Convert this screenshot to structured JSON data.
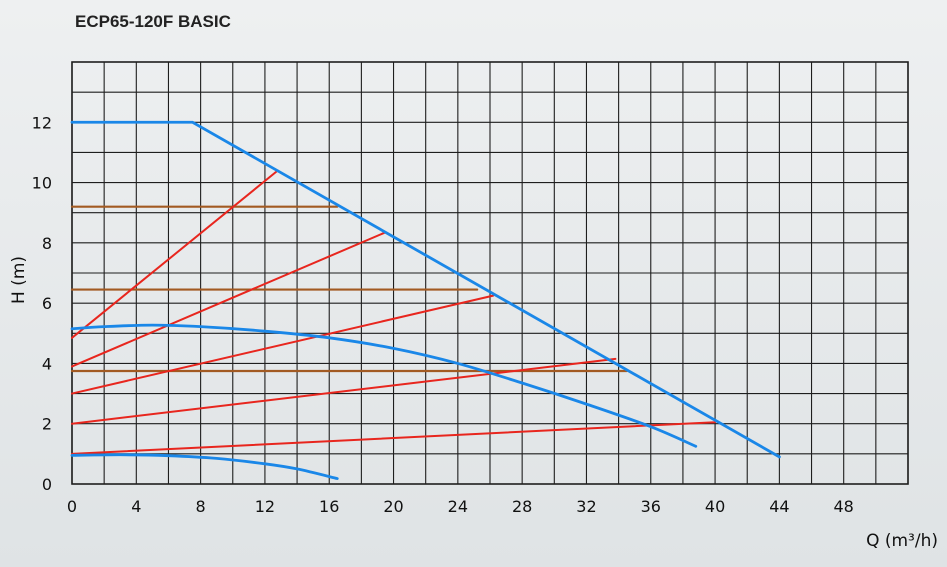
{
  "title": "ECP65-120F BASIC",
  "colors": {
    "pump_curve": "#1a87e8",
    "system_curve": "#e8261e",
    "setpoint": "#a25a22",
    "grid": "#1e1e1e"
  },
  "chart_data": {
    "type": "line",
    "xlabel": "Q (m³/h)",
    "ylabel": "H (m)",
    "xlim": [
      0,
      52
    ],
    "ylim": [
      0,
      14
    ],
    "xticks": [
      0,
      4,
      8,
      12,
      16,
      20,
      24,
      28,
      32,
      36,
      40,
      44,
      48
    ],
    "yticks": [
      0,
      2,
      4,
      6,
      8,
      10,
      12
    ],
    "grid": true,
    "series": [
      {
        "kind": "pump",
        "points": [
          [
            0,
            12
          ],
          [
            7.5,
            12
          ],
          [
            44,
            0.9
          ]
        ]
      },
      {
        "kind": "pump",
        "points": [
          [
            0,
            5.15
          ],
          [
            2,
            5.22
          ],
          [
            5,
            5.27
          ],
          [
            8,
            5.22
          ],
          [
            12,
            5.07
          ],
          [
            16,
            4.85
          ],
          [
            20,
            4.5
          ],
          [
            24,
            4.0
          ],
          [
            28,
            3.35
          ],
          [
            32,
            2.65
          ],
          [
            36,
            1.9
          ],
          [
            38.8,
            1.25
          ]
        ]
      },
      {
        "kind": "pump",
        "points": [
          [
            0,
            0.95
          ],
          [
            3,
            0.97
          ],
          [
            6,
            0.94
          ],
          [
            9,
            0.85
          ],
          [
            12,
            0.67
          ],
          [
            14,
            0.5
          ],
          [
            16.5,
            0.18
          ]
        ]
      },
      {
        "kind": "system",
        "points": [
          [
            0,
            4.85
          ],
          [
            12.8,
            10.4
          ]
        ]
      },
      {
        "kind": "system",
        "points": [
          [
            0,
            3.9
          ],
          [
            19.5,
            8.35
          ]
        ]
      },
      {
        "kind": "system",
        "points": [
          [
            0,
            3.0
          ],
          [
            26.2,
            6.25
          ]
        ]
      },
      {
        "kind": "system",
        "points": [
          [
            0,
            2.0
          ],
          [
            33.8,
            4.15
          ]
        ]
      },
      {
        "kind": "system",
        "points": [
          [
            0,
            1.0
          ],
          [
            40,
            2.05
          ]
        ]
      },
      {
        "kind": "setpoint",
        "points": [
          [
            0,
            9.2
          ],
          [
            16.5,
            9.2
          ]
        ]
      },
      {
        "kind": "setpoint",
        "points": [
          [
            0,
            6.45
          ],
          [
            25.2,
            6.45
          ]
        ]
      },
      {
        "kind": "setpoint",
        "points": [
          [
            0,
            3.75
          ],
          [
            34.5,
            3.75
          ]
        ]
      }
    ]
  }
}
